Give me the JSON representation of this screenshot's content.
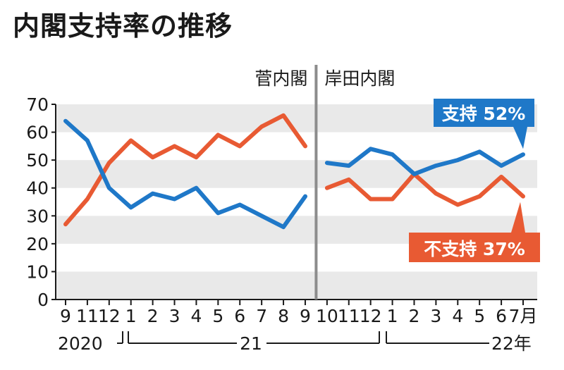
{
  "chart_data": {
    "type": "line",
    "title": "内閣支持率の推移",
    "ylim": [
      0,
      70
    ],
    "y_ticks": [
      "0",
      "10",
      "20",
      "30",
      "40",
      "50",
      "60",
      "70"
    ],
    "x": [
      "9",
      "11",
      "12",
      "1",
      "2",
      "3",
      "4",
      "5",
      "6",
      "7",
      "8",
      "9",
      "10",
      "11",
      "12",
      "1",
      "2",
      "3",
      "4",
      "5",
      "6",
      "7月"
    ],
    "year_labels": [
      "2020",
      "21",
      "22年"
    ],
    "eras": [
      "菅内閣",
      "岸田内閣"
    ],
    "grid": "alternating horizontal bands",
    "series": [
      {
        "name": "支持",
        "color": "#1f78c8",
        "callout": "支持 52%",
        "segments": [
          [
            64,
            57,
            40,
            33,
            38,
            36,
            40,
            31,
            34,
            30,
            26,
            37
          ],
          [
            49,
            48,
            54,
            52,
            45,
            48,
            50,
            53,
            48,
            52
          ]
        ]
      },
      {
        "name": "不支持",
        "color": "#e85a33",
        "callout": "不支持 37%",
        "segments": [
          [
            27,
            36,
            49,
            57,
            51,
            55,
            51,
            59,
            55,
            62,
            66,
            55
          ],
          [
            40,
            43,
            36,
            36,
            45,
            38,
            34,
            37,
            44,
            37
          ]
        ]
      }
    ]
  }
}
